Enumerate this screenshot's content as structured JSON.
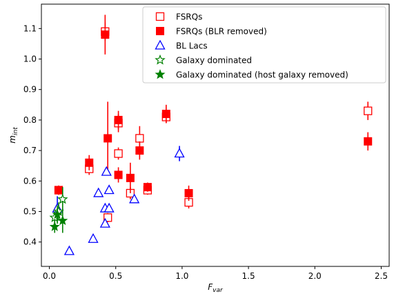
{
  "chart_data": {
    "type": "scatter",
    "xlabel": "F",
    "xlabel_sub": "var",
    "ylabel": "m",
    "ylabel_sub": "int",
    "xlim": [
      -0.06,
      2.56
    ],
    "ylim": [
      0.32,
      1.18
    ],
    "xticks": [
      0.0,
      0.5,
      1.0,
      1.5,
      2.0,
      2.5
    ],
    "xtick_labels": [
      "0.0",
      "0.5",
      "1.0",
      "1.5",
      "2.0",
      "2.5"
    ],
    "yticks": [
      0.4,
      0.5,
      0.6,
      0.7,
      0.8,
      0.9,
      1.0,
      1.1
    ],
    "ytick_labels": [
      "0.4",
      "0.5",
      "0.6",
      "0.7",
      "0.8",
      "0.9",
      "1.0",
      "1.1"
    ],
    "grid": false,
    "legend_position": "top-right",
    "series": [
      {
        "name": "FSRQs",
        "marker": "square-open",
        "color": "#ff0000",
        "points": [
          {
            "x": 0.42,
            "y": 1.09,
            "err": 0.03
          },
          {
            "x": 0.3,
            "y": 0.64,
            "err": 0.02
          },
          {
            "x": 0.07,
            "y": 0.57,
            "err": 0.015
          },
          {
            "x": 0.44,
            "y": 0.48,
            "err": 0.015
          },
          {
            "x": 0.52,
            "y": 0.79,
            "err": 0.03
          },
          {
            "x": 0.52,
            "y": 0.69,
            "err": 0.02
          },
          {
            "x": 0.61,
            "y": 0.56,
            "err": 0.02
          },
          {
            "x": 0.68,
            "y": 0.74,
            "err": 0.04
          },
          {
            "x": 0.74,
            "y": 0.57,
            "err": 0.015
          },
          {
            "x": 0.88,
            "y": 0.81,
            "err": 0.02
          },
          {
            "x": 1.05,
            "y": 0.53,
            "err": 0.02
          },
          {
            "x": 2.4,
            "y": 0.83,
            "err": 0.03
          }
        ]
      },
      {
        "name": "FSRQs (BLR removed)",
        "marker": "square-filled",
        "color": "#ff0000",
        "points": [
          {
            "x": 0.42,
            "y": 1.08,
            "err": 0.065
          },
          {
            "x": 0.3,
            "y": 0.66,
            "err": 0.025
          },
          {
            "x": 0.07,
            "y": 0.57,
            "err": 0.015
          },
          {
            "x": 0.44,
            "y": 0.74,
            "err": 0.12
          },
          {
            "x": 0.52,
            "y": 0.8,
            "err": 0.03
          },
          {
            "x": 0.52,
            "y": 0.62,
            "err": 0.025
          },
          {
            "x": 0.61,
            "y": 0.61,
            "err": 0.05
          },
          {
            "x": 0.68,
            "y": 0.7,
            "err": 0.03
          },
          {
            "x": 0.74,
            "y": 0.58,
            "err": 0.015
          },
          {
            "x": 0.88,
            "y": 0.82,
            "err": 0.03
          },
          {
            "x": 1.05,
            "y": 0.56,
            "err": 0.025
          },
          {
            "x": 2.4,
            "y": 0.73,
            "err": 0.03
          }
        ]
      },
      {
        "name": "BL Lacs",
        "marker": "triangle-open",
        "color": "#0000ff",
        "points": [
          {
            "x": 0.06,
            "y": 0.51,
            "err": 0.04
          },
          {
            "x": 0.15,
            "y": 0.37,
            "err": 0.0
          },
          {
            "x": 0.33,
            "y": 0.41,
            "err": 0.0
          },
          {
            "x": 0.37,
            "y": 0.56,
            "err": 0.0
          },
          {
            "x": 0.42,
            "y": 0.51,
            "err": 0.0
          },
          {
            "x": 0.42,
            "y": 0.46,
            "err": 0.0
          },
          {
            "x": 0.43,
            "y": 0.63,
            "err": 0.01
          },
          {
            "x": 0.45,
            "y": 0.57,
            "err": 0.0
          },
          {
            "x": 0.45,
            "y": 0.51,
            "err": 0.0
          },
          {
            "x": 0.64,
            "y": 0.54,
            "err": 0.0
          },
          {
            "x": 0.98,
            "y": 0.69,
            "err": 0.025
          }
        ]
      },
      {
        "name": "Galaxy dominated",
        "marker": "star-open",
        "color": "#008000",
        "points": [
          {
            "x": 0.04,
            "y": 0.48,
            "err": 0.02
          },
          {
            "x": 0.07,
            "y": 0.5,
            "err": 0.03
          },
          {
            "x": 0.1,
            "y": 0.54,
            "err": 0.04
          }
        ]
      },
      {
        "name": "Galaxy dominated (host galaxy removed)",
        "marker": "star-filled",
        "color": "#008000",
        "points": [
          {
            "x": 0.04,
            "y": 0.45,
            "err": 0.02
          },
          {
            "x": 0.06,
            "y": 0.49,
            "err": 0.03
          },
          {
            "x": 0.1,
            "y": 0.47,
            "err": 0.04
          }
        ]
      }
    ]
  }
}
